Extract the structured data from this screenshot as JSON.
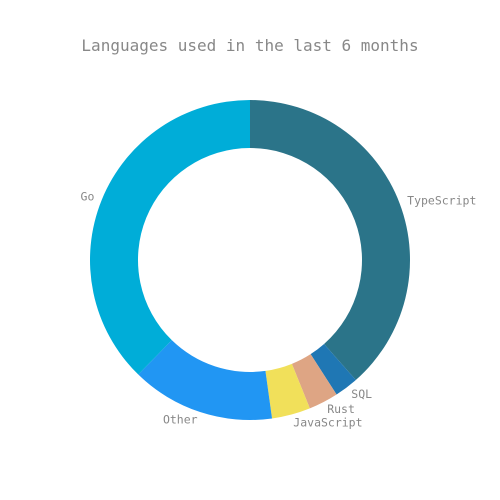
{
  "chart_data": {
    "type": "pie",
    "title": "Languages used in the last 6 months",
    "donut": true,
    "start_angle_deg": 0,
    "direction": "clockwise",
    "slices": [
      {
        "label": "TypeScript",
        "value": 38.5,
        "color": "#2b7489"
      },
      {
        "label": "SQL",
        "value": 2.4,
        "color": "#1f77b4"
      },
      {
        "label": "Rust",
        "value": 3.0,
        "color": "#dea584"
      },
      {
        "label": "JavaScript",
        "value": 3.9,
        "color": "#f1e05a"
      },
      {
        "label": "Other",
        "value": 14.5,
        "color": "#2196f3"
      },
      {
        "label": "Go",
        "value": 37.7,
        "color": "#00add8"
      }
    ]
  }
}
